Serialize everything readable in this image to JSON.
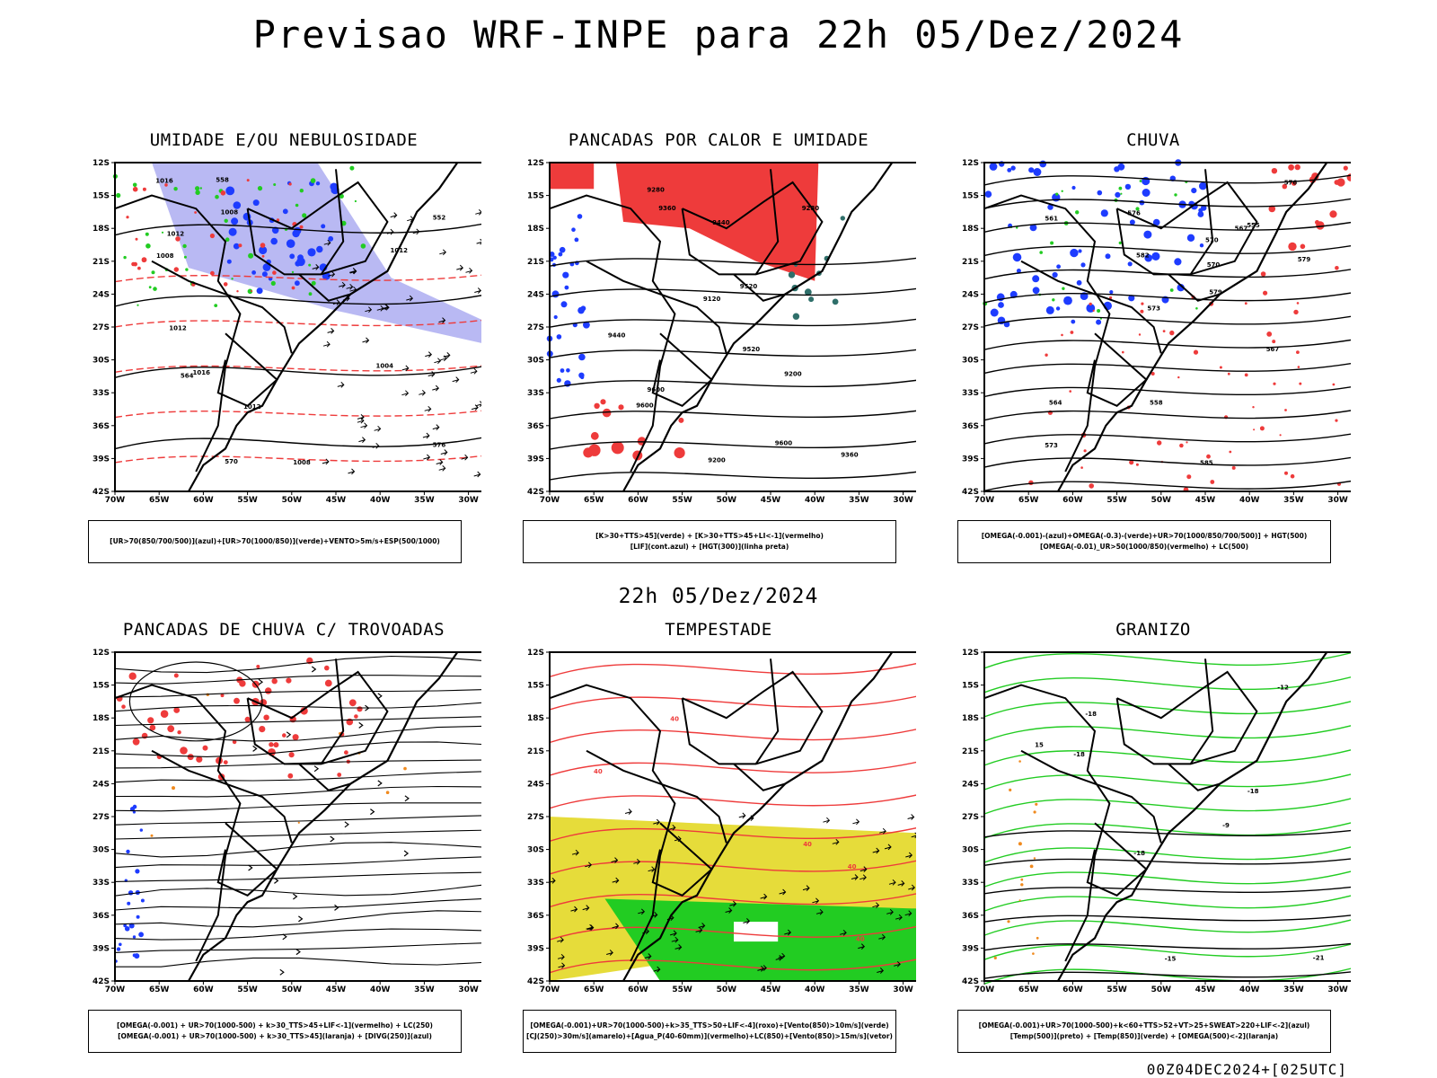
{
  "title": "Previsao WRF-INPE  para 22h 05/Dez/2024",
  "subtitle": "22h 05/Dez/2024",
  "footer": "00Z04DEC2024+[025UTC]",
  "axes": {
    "lat_labels": [
      "12S",
      "15S",
      "18S",
      "21S",
      "24S",
      "27S",
      "30S",
      "33S",
      "36S",
      "39S",
      "42S"
    ],
    "lon_labels": [
      "70W",
      "65W",
      "60W",
      "55W",
      "50W",
      "45W",
      "40W",
      "35W",
      "30W"
    ]
  },
  "panels": [
    {
      "id": "umidade",
      "title": "UMIDADE E/OU NEBULOSIDADE",
      "legend": [
        "[UR>70(850/700/500)](azul)+[UR>70(1000/850)](verde)+VENTO>5m/s+ESP(500/1000)"
      ],
      "contour_labels": [
        "1012",
        "1008",
        "1016",
        "1012",
        "1008",
        "576",
        "570",
        "564",
        "558",
        "552",
        "1012",
        "1016",
        "1004",
        "1008",
        "1012"
      ]
    },
    {
      "id": "pancadas-calor",
      "title": "PANCADAS POR CALOR E UMIDADE",
      "legend": [
        "[K>30+TTS>45](verde) + [K>30+TTS>45+LI<-1](vermelho)",
        "[LIF](cont.azul) + [HGT(300)](linha preta)"
      ],
      "contour_labels": [
        "9600",
        "9600",
        "9520",
        "9440",
        "9360",
        "9280",
        "9200",
        "9120",
        "9600",
        "9520",
        "9440",
        "9360",
        "9280",
        "9200"
      ]
    },
    {
      "id": "chuva",
      "title": "CHUVA",
      "legend": [
        "[OMEGA(-0.001)-(azul)+OMEGA(-0.3)-(verde)+UR>70(1000/850/700/500)] + HGT(500)",
        "[OMEGA(-0.01)_UR>50(1000/850)(vermelho) + LC(500)"
      ],
      "contour_labels": [
        "585",
        "582",
        "579",
        "576",
        "573",
        "570",
        "567",
        "564",
        "561",
        "558",
        "555",
        "579",
        "576",
        "573",
        "570",
        "567"
      ]
    },
    {
      "id": "pancadas-trovoadas",
      "title": "PANCADAS DE CHUVA C/ TROVOADAS",
      "legend": [
        "[OMEGA(-0.001) + UR>70(1000-500) + k>30_TTS>45+LIF<-1](vermelho) + LC(250)",
        "[OMEGA(-0.001) + UR>70(1000-500) + k>30_TTS>45](laranja) + [DIVG(250)](azul)"
      ],
      "contour_labels": []
    },
    {
      "id": "tempestade",
      "title": "TEMPESTADE",
      "legend": [
        "[OMEGA(-0.001)+UR>70(1000-500)+k>35_TTS>50+LIF<-4](roxo)+[Vento(850)>10m/s](verde)",
        "[CJ(250)>30m/s](amarelo)+[Agua_P(40-60mm)](vermelho)+LC(850)+[Vento(850)>15m/s](vetor)"
      ],
      "contour_labels": [
        "40",
        "40",
        "40",
        "40",
        "40"
      ]
    },
    {
      "id": "granizo",
      "title": "GRANIZO",
      "legend": [
        "[OMEGA(-0.001)+UR>70(1000-500)+k<60+TTS>52+VT>25+SWEAT>220+LIF<-2](azul)",
        "[Temp(500)](preto) + [Temp(850)](verde) + [OMEGA(500)<-2](laranja)"
      ],
      "contour_labels": [
        "-9",
        "-12",
        "-15",
        "-18",
        "-18",
        "-18",
        "-18",
        "-21",
        "15"
      ]
    }
  ],
  "colors": {
    "red": "#ee3b3b",
    "green": "#22cc22",
    "blue": "#1e3cff",
    "lightblue": "#a8a8f0",
    "yellow": "#e6dc3a",
    "darkteal": "#2f6f6a",
    "orange": "#f08a1e",
    "black": "#000000"
  },
  "chart_data": {
    "type": "map",
    "title": "Previsao WRF-INPE  para 22h 05/Dez/2024",
    "lat_range": [
      "12S",
      "42S"
    ],
    "lon_range": [
      "70W",
      "30W"
    ],
    "panels": [
      "UMIDADE E/OU NEBULOSIDADE",
      "PANCADAS POR CALOR E UMIDADE",
      "CHUVA",
      "PANCADAS DE CHUVA C/ TROVOADAS",
      "TEMPESTADE",
      "GRANIZO"
    ]
  }
}
